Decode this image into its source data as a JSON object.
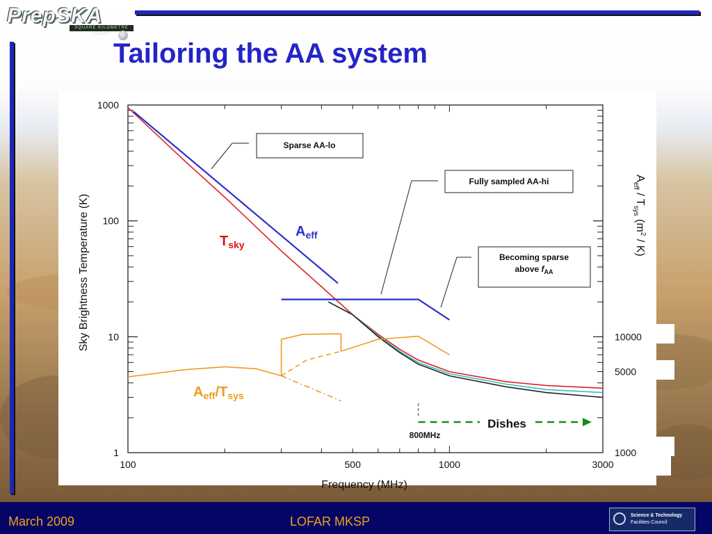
{
  "slide": {
    "title": "Tailoring the AA system",
    "logo_text": "PrepSKA",
    "logo_subtext": "SQUARE KILOMETRE ARRAY",
    "footer_left": "March 2009",
    "footer_center": "LOFAR MKSP",
    "stfc_line1": "Science & Technology",
    "stfc_line2": "Facilities Council",
    "accent": "#1e27b8",
    "title_color": "#2424c8",
    "footer_bg": "#050565",
    "footer_text_color": "#f0a020"
  },
  "chart_data": {
    "type": "line",
    "xlabel": "Frequency (MHz)",
    "ylabel": "Sky Brightness Temperature (K)",
    "y2label_parts": [
      "A",
      "eff",
      " / T",
      "sys",
      "  (m",
      "2",
      " / K)"
    ],
    "xscale": "log",
    "yscale": "log",
    "xlim": [
      100,
      3000
    ],
    "ylim": [
      1,
      1000
    ],
    "x_ticks": [
      "100",
      "500",
      "1000",
      "3000"
    ],
    "y_ticks": [
      "1",
      "10",
      "100",
      "1000"
    ],
    "y2_ticks": [
      "1000",
      "5000",
      "10000"
    ],
    "series": [
      {
        "name": "Tsky",
        "color": "#e02020",
        "x": [
          100,
          150,
          200,
          300,
          400,
          500,
          600,
          700,
          800,
          1000,
          1500,
          2000,
          3000
        ],
        "y": [
          950,
          330,
          160,
          55,
          27,
          15.5,
          10.5,
          7.8,
          6.3,
          5.0,
          4.1,
          3.8,
          3.6
        ]
      },
      {
        "name": "Tsys cyan",
        "color": "#30c0c0",
        "x": [
          420,
          500,
          600,
          700,
          800,
          1000,
          1500,
          2000,
          3000
        ],
        "y": [
          20,
          15.5,
          10.2,
          7.5,
          6.0,
          4.8,
          3.9,
          3.5,
          3.3
        ]
      },
      {
        "name": "Tsys black",
        "color": "#222222",
        "x": [
          420,
          500,
          600,
          700,
          800,
          1000,
          1500,
          2000,
          3000
        ],
        "y": [
          20,
          15.5,
          10.0,
          7.3,
          5.8,
          4.6,
          3.7,
          3.3,
          3.0
        ]
      },
      {
        "name": "Aeff",
        "color": "#2a30c8",
        "x": [
          104,
          450
        ],
        "y": [
          880,
          29
        ]
      },
      {
        "name": "Aeff flat",
        "color": "#2a30c8",
        "x": [
          300,
          800,
          1000
        ],
        "y": [
          21,
          21,
          14
        ]
      },
      {
        "name": "Aeff/Tsys lo",
        "color": "#f09a20",
        "x": [
          100,
          150,
          200,
          250,
          300
        ],
        "y": [
          4.5,
          5.2,
          5.5,
          5.3,
          4.6
        ]
      },
      {
        "name": "Aeff/Tsys mid",
        "color": "#f09a20",
        "x": [
          300,
          300,
          350,
          460,
          460
        ],
        "y": [
          4.6,
          9.5,
          10.5,
          10.6,
          7.5
        ]
      },
      {
        "name": "Aeff/Tsys hi",
        "color": "#f09a20",
        "x": [
          460,
          600,
          800,
          1000
        ],
        "y": [
          7.5,
          9.5,
          10.1,
          7.0
        ]
      },
      {
        "name": "Aeff/Tsys dashed",
        "color": "#f09a20",
        "style": "dashed",
        "x": [
          300,
          360,
          460
        ],
        "y": [
          4.6,
          6.3,
          7.5
        ]
      },
      {
        "name": "Aeff/Tsys dashdot",
        "color": "#f09a20",
        "style": "dashdot",
        "x": [
          300,
          460
        ],
        "y": [
          4.6,
          2.8
        ]
      }
    ],
    "labels": {
      "tsky_main": "T",
      "tsky_sub": "sky",
      "aeff_main": "A",
      "aeff_sub": "eff",
      "aeff_tsys_a": "A",
      "aeff_tsys_eff": "eff",
      "aeff_tsys_slash": "/T",
      "aeff_tsys_sys": "sys",
      "dishes": "Dishes",
      "freq_800": "800MHz"
    },
    "callouts": {
      "sparse_lo": "Sparse AA-lo",
      "fully_sampled": "Fully sampled AA-hi",
      "becoming_line1": "Becoming sparse",
      "becoming_line2_prefix": "above ",
      "becoming_f": "f",
      "becoming_sub": "AA"
    },
    "grid": false,
    "legend": "none"
  }
}
